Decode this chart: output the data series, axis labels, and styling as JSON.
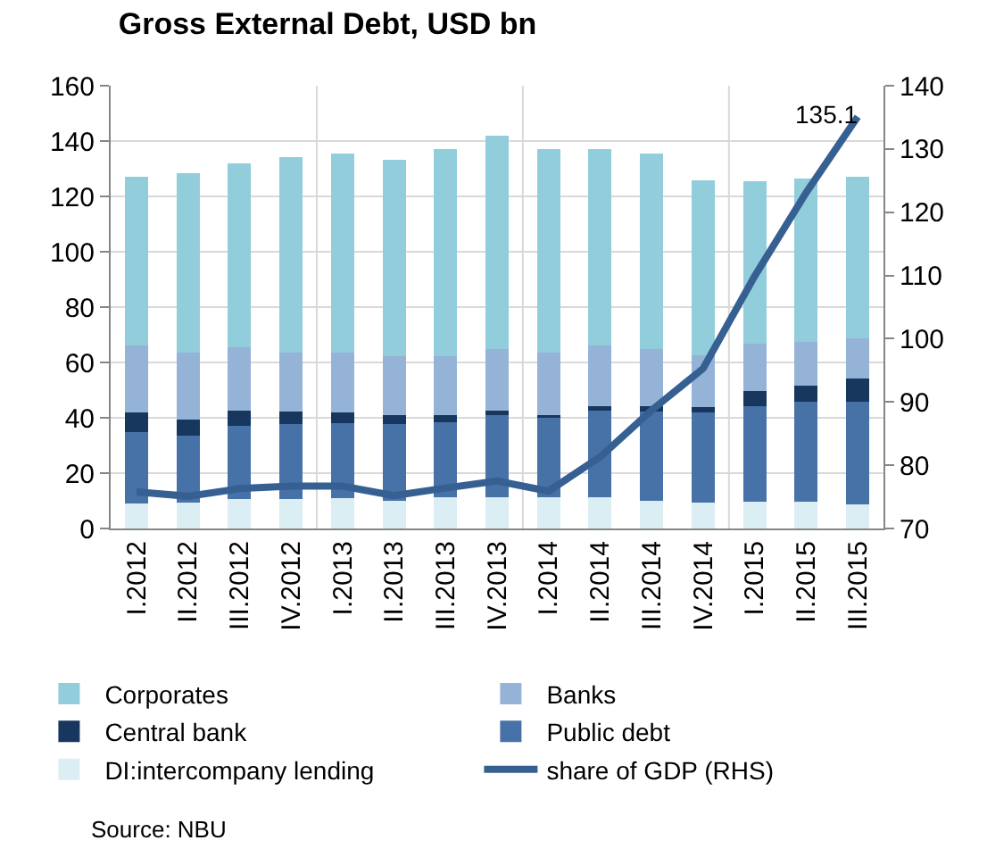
{
  "chart_data": {
    "type": "bar",
    "title": "Gross External Debt, USD bn",
    "stacked": true,
    "categories": [
      "I.2012",
      "II.2012",
      "III.2012",
      "IV.2012",
      "I.2013",
      "II.2013",
      "III.2013",
      "IV.2013",
      "I.2014",
      "II.2014",
      "III.2014",
      "IV.2014",
      "I.2015",
      "II.2015",
      "III.2015"
    ],
    "series": [
      {
        "name": "DI:intercompany lending",
        "color": "#daeef3",
        "values": [
          9,
          9.5,
          10.5,
          10.5,
          11,
          10.1,
          11.2,
          11.2,
          11.2,
          11.2,
          9.9,
          9.2,
          9.7,
          9.7,
          8.8
        ]
      },
      {
        "name": "Public debt",
        "color": "#4672a8",
        "values": [
          26,
          24,
          26.7,
          27.3,
          27.1,
          27.7,
          27.1,
          29.9,
          28.8,
          31.4,
          32.3,
          32.7,
          34.4,
          36.1,
          37
        ]
      },
      {
        "name": "Central bank",
        "color": "#17375e",
        "values": [
          7,
          6,
          5.4,
          4.4,
          3.8,
          3.1,
          2.6,
          1.5,
          1.1,
          1.7,
          2.1,
          2,
          5.6,
          5.8,
          8.4
        ]
      },
      {
        "name": "Banks",
        "color": "#95b3d7",
        "values": [
          24,
          24,
          22.8,
          21.5,
          21.8,
          21.3,
          21.3,
          22.1,
          22.6,
          21.7,
          20.4,
          18.7,
          17,
          15.7,
          14.4
        ]
      },
      {
        "name": "Corporates",
        "color": "#92cddc",
        "values": [
          61,
          65,
          66.4,
          70.5,
          71.8,
          71.1,
          74.8,
          77.2,
          73.3,
          71,
          70.8,
          63.2,
          58.9,
          59.2,
          58.5
        ]
      },
      {
        "name": "share of GDP (RHS)",
        "type": "line",
        "axis": "y2",
        "color": "#376092",
        "values": [
          75.8,
          75.1,
          76.3,
          76.7,
          76.7,
          75.2,
          76.4,
          77.5,
          75.9,
          81.3,
          88.7,
          95.3,
          109.9,
          123.1,
          135.1
        ],
        "value_labels": [
          null,
          null,
          null,
          null,
          null,
          null,
          null,
          null,
          null,
          null,
          null,
          null,
          null,
          null,
          "135.1"
        ]
      }
    ],
    "ylim": [
      0,
      160
    ],
    "yticks": [
      0,
      20,
      40,
      60,
      80,
      100,
      120,
      140,
      160
    ],
    "y2lim": [
      70,
      140
    ],
    "y2ticks": [
      70,
      80,
      90,
      100,
      110,
      120,
      130,
      140
    ],
    "grid": true,
    "legend": "bottom",
    "marker": "none",
    "line_style": "solid",
    "annotations": [
      "Source: NBU"
    ]
  }
}
